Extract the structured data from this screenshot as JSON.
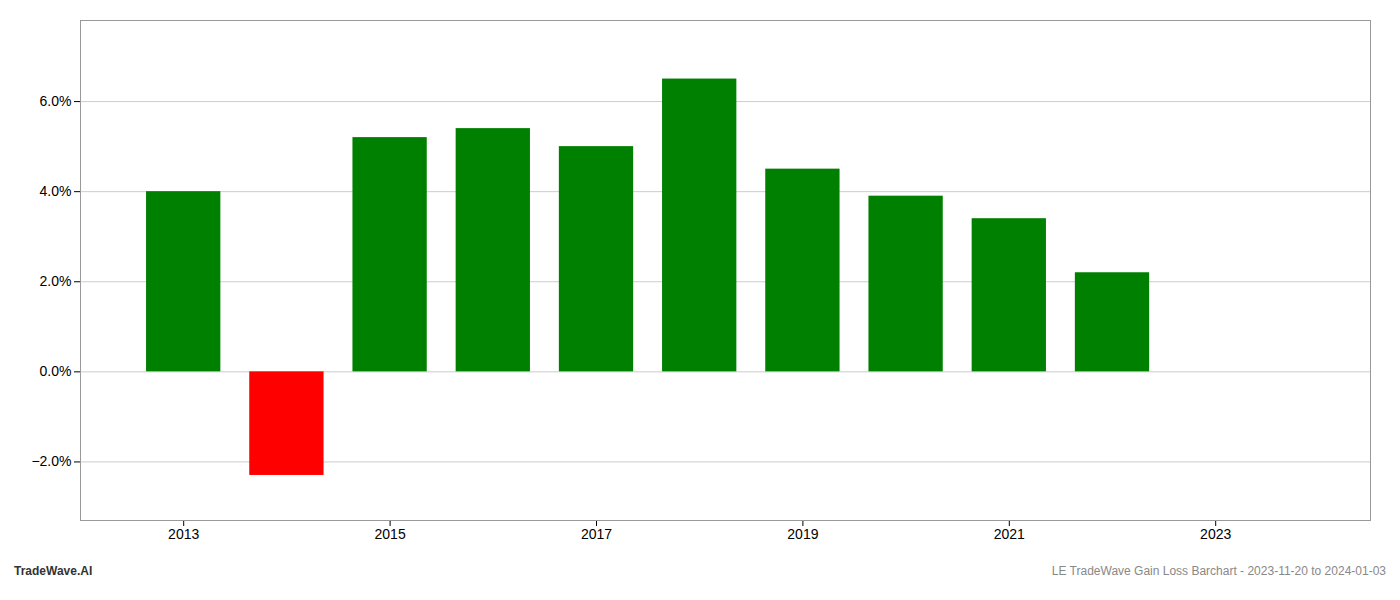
{
  "chart_data": {
    "type": "bar",
    "x": [
      2013,
      2014,
      2015,
      2016,
      2017,
      2018,
      2019,
      2020,
      2021,
      2022
    ],
    "values": [
      0.04,
      -0.023,
      0.052,
      0.054,
      0.05,
      0.065,
      0.045,
      0.039,
      0.034,
      0.022
    ],
    "colors": [
      "#008000",
      "#ff0000",
      "#008000",
      "#008000",
      "#008000",
      "#008000",
      "#008000",
      "#008000",
      "#008000",
      "#008000"
    ],
    "xlim": [
      2012.0,
      2024.5
    ],
    "xticks": [
      2013,
      2015,
      2017,
      2019,
      2021,
      2023
    ],
    "ylim": [
      -0.033,
      0.078
    ],
    "yticks": [
      {
        "value": -0.02,
        "label": "−2.0%"
      },
      {
        "value": 0.0,
        "label": "0.0%"
      },
      {
        "value": 0.02,
        "label": "2.0%"
      },
      {
        "value": 0.04,
        "label": "4.0%"
      },
      {
        "value": 0.06,
        "label": "6.0%"
      }
    ],
    "grid": true,
    "annotations": [
      "TradeWave.AI",
      "LE TradeWave Gain Loss Barchart - 2023-11-20 to 2024-01-03"
    ]
  }
}
